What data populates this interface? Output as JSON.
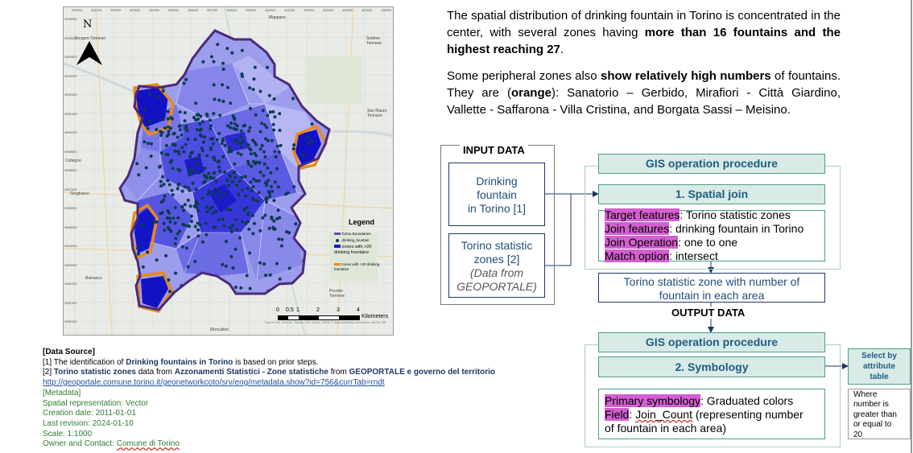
{
  "map": {
    "north_label": "N",
    "legend_title": "Legend",
    "legend_items": [
      {
        "label": "Torino Boundaries",
        "color": "#6e4aa8"
      },
      {
        "label": "drinking_fountain",
        "color": "#0d3b4f"
      },
      {
        "label": "zones with >20 drinking fountains",
        "color": "#1a1ad0"
      },
      {
        "label": "zones with >20 drinking fountains",
        "color": "#e88a1a"
      }
    ],
    "scale_labels": [
      "0",
      "0.5",
      "1",
      "2",
      "3",
      "4"
    ],
    "scale_unit": "Kilometers",
    "places": {
      "mappano": "Mappano",
      "settimo": "Settimo Torinese",
      "borgaro": "Borgaro Torinese",
      "collegno": "Collegno",
      "grugliasco": "Grugliasco",
      "beinasco": "Beinasco",
      "moncalieri": "Moncalieri",
      "pecetto": "Pecetto Torinese",
      "sanmauro": "San Mauro Torinese"
    },
    "top_ticks": [
      "390000",
      "391000",
      "392000",
      "393000",
      "394000",
      "395000",
      "396000",
      "397000",
      "398000",
      "399000",
      "400000",
      "401000",
      "402000",
      "403000",
      "404000",
      "405000",
      "406000"
    ],
    "left_ticks": [
      "4996000",
      "4995000",
      "4994000",
      "4993000",
      "4992000",
      "4991000",
      "4990000",
      "4989000",
      "4988000",
      "4987000",
      "4986000",
      "4985000",
      "4984000",
      "4983000",
      "4982000",
      "4981000",
      "4980000"
    ],
    "attribution": "Source: Esri, TomTom, Garmin, FAO, NOAA, USGS, © OpenStreetMap contributors, and the GIS User Community"
  },
  "text": {
    "p1_a": "The spatial distribution of drinking fountain in Torino is concentrated in the center, with several zones having ",
    "p1_b": "more than 16 fountains and the highest reaching 27",
    "p1_c": ".",
    "p2_a": "Some peripheral zones also ",
    "p2_b": "show relatively high numbers",
    "p2_c": " of fountains. They are (",
    "p2_d": "orange",
    "p2_e": "): Sanatorio – Gerbido, Mirafiori - Città Giardino, Vallette - Saffarona - Villa Cristina, and Borgata Sassi – Meisino."
  },
  "diagram": {
    "input_label": "INPUT DATA",
    "input1": [
      "Drinking",
      "fountain",
      "in Torino [1]"
    ],
    "input2": [
      "Torino statistic",
      "zones [2]"
    ],
    "input2_note": [
      "(Data from",
      "GEOPORTALE)"
    ],
    "proc1_header": "GIS operation procedure",
    "proc1_step": "1. Spatial join",
    "proc1_details": [
      {
        "key": "Target features",
        "value": ": Torino statistic zones"
      },
      {
        "key": "Join features",
        "value": ": drinking fountain in Torino"
      },
      {
        "key": "Join Operation",
        "value": ": one to one"
      },
      {
        "key": "Match option",
        "value": ": intersect"
      }
    ],
    "output_box": [
      "Torino statistic zone with number of",
      "fountain in each area"
    ],
    "output_label": "OUTPUT DATA",
    "proc2_header": "GIS operation procedure",
    "proc2_step": "2. Symbology",
    "proc2_line1_key": "Primary symbology",
    "proc2_line1_val": ": Graduated colors",
    "proc2_line2_key": "Field",
    "proc2_line2_a": ": ",
    "proc2_line2_field": "Join_Count",
    "proc2_line2_b": " (representing number",
    "proc2_line3": "of fountain in each area)",
    "side_button": [
      "Select by",
      "attribute",
      "table"
    ],
    "side_note": [
      "Where",
      "number is",
      "greater than",
      "or equal to",
      "20"
    ]
  },
  "source": {
    "head": "[Data Source]",
    "l1_a": "[1] The identification of ",
    "l1_b": "Drinking fountains in Torino",
    "l1_c": " is based on prior steps.",
    "l2_a": "[2] ",
    "l2_b": "Torino statistic zones",
    "l2_c": " data from ",
    "l2_d": "Azzonamenti Statistici - Zone statistiche",
    "l2_e": " from ",
    "l2_f": "GEOPORTALE e governo del territorio",
    "url": "http://geoportale.comune.torino.it/geonetworkcoto/srv/eng/metadata.show?id=756&currTab=rndt",
    "meta_head": "[Metadata]",
    "meta1": "Spatial representation: Vector",
    "meta2": "Creation date: 2011-01-01",
    "meta3": "Last revision: 2024-01-10",
    "meta4": "Scale: 1:1000",
    "meta5_a": "Owner and Contact: ",
    "meta5_b": "Comune di Torino"
  }
}
